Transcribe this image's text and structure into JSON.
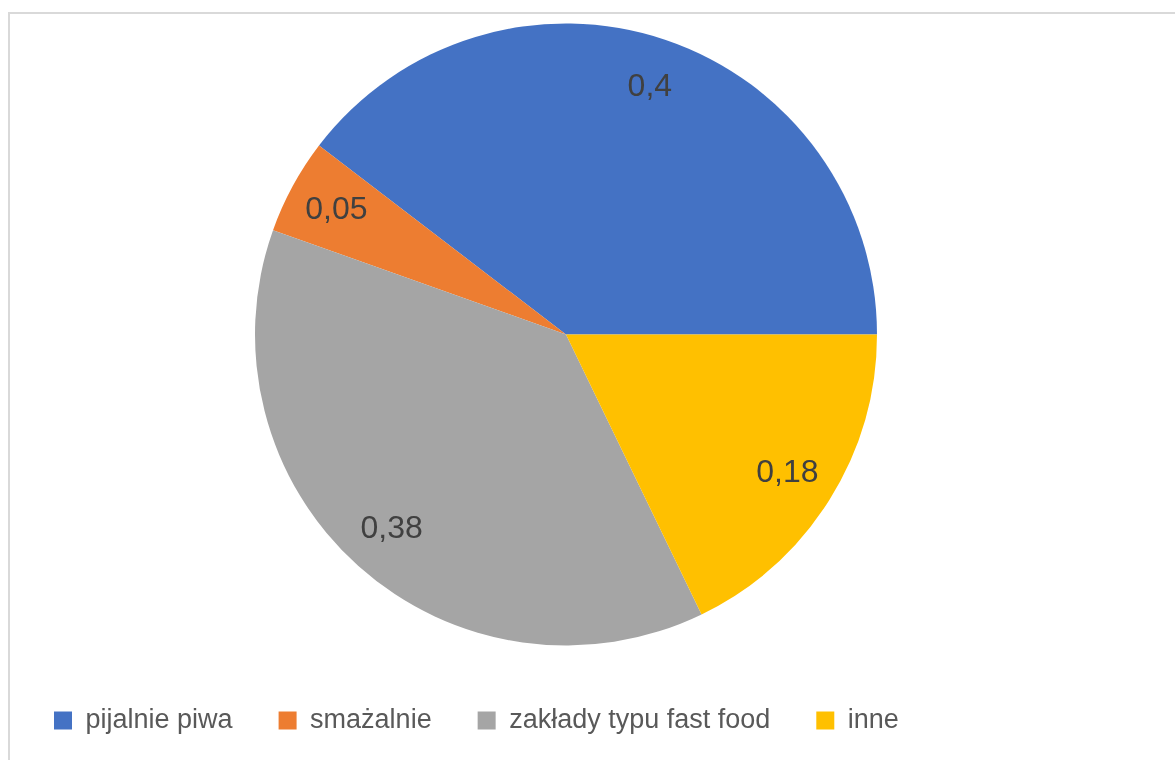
{
  "chart_data": {
    "type": "pie",
    "categories": [
      "pijalnie piwa",
      "smażalnie",
      "zakłady typu fast food",
      "inne"
    ],
    "values": [
      0.4,
      0.05,
      0.38,
      0.18
    ],
    "colors": [
      "#4472c4",
      "#ed7d31",
      "#a5a5a5",
      "#ffc000"
    ],
    "value_labels": [
      "0,4",
      "0,05",
      "0,38",
      "0,18"
    ],
    "legend": "bottom"
  }
}
